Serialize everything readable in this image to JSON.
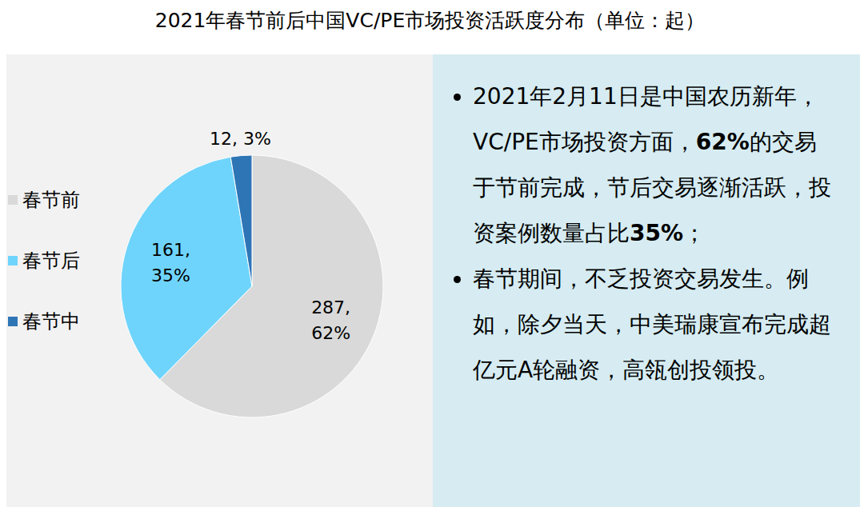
{
  "chart_data": {
    "type": "pie",
    "title": "2021年春节前后中国VC/PE市场投资活跃度分布（单位：起）",
    "categories": [
      "春节前",
      "春节后",
      "春节中"
    ],
    "values": [
      287,
      161,
      12
    ],
    "value_labels": [
      "287, 62%",
      "161, 35%",
      "12, 3%"
    ],
    "colors": [
      "#d9d9d9",
      "#6fd4fb",
      "#2e75b6"
    ],
    "data_labels": true,
    "legend": "left"
  },
  "notes": [
    [
      {
        "text": "2021年2月11日是中国农历新年，VC/PE市场投资方面，",
        "bold": false
      },
      {
        "text": "62%",
        "bold": true
      },
      {
        "text": "的交易于节前完成，节后交易逐渐活跃，投资案例数量占比",
        "bold": false
      },
      {
        "text": "35%",
        "bold": true
      },
      {
        "text": "；",
        "bold": false
      }
    ],
    [
      {
        "text": "春节期间，不乏投资交易发生。例如，除夕当天，中美瑞康宣布完成超亿元A轮融资，高瓴创投领投。",
        "bold": false
      }
    ]
  ]
}
